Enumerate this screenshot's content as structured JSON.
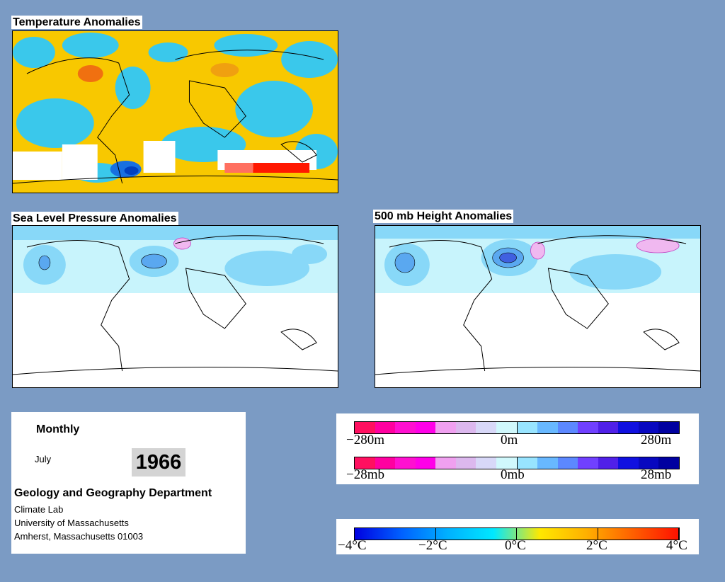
{
  "maps": {
    "temperature": {
      "title": "Temperature Anomalies"
    },
    "slp": {
      "title": "Sea Level Pressure Anomalies"
    },
    "height500": {
      "title": "500 mb Height Anomalies"
    }
  },
  "info": {
    "period": "Monthly",
    "month": "July",
    "year": "1966",
    "department": "Geology and Geography Department",
    "lab": "Climate Lab",
    "university": "University of Massachusetts",
    "address": "Amherst, Massachusetts 01003"
  },
  "legends": {
    "height": {
      "ticks": [
        "−280m",
        "0m",
        "280m"
      ],
      "colors": [
        "#ff1060",
        "#ff00a0",
        "#ff10d0",
        "#ff00e8",
        "#f0a0f0",
        "#dcb8ee",
        "#d8d8f8",
        "#d0f8fc",
        "#98e4ff",
        "#68b8ff",
        "#5c88ff",
        "#7040ff",
        "#5020e8",
        "#1010e0",
        "#0808c0",
        "#0000a0"
      ]
    },
    "pressure": {
      "ticks": [
        "−28mb",
        "0mb",
        "28mb"
      ],
      "colors": [
        "#ff1060",
        "#ff00a0",
        "#ff10d0",
        "#ff00e8",
        "#f0a0f0",
        "#dcb8ee",
        "#d8d8f8",
        "#d0f8fc",
        "#98e4ff",
        "#68b8ff",
        "#5c88ff",
        "#7040ff",
        "#5020e8",
        "#1010e0",
        "#0808c0",
        "#0000a0"
      ]
    },
    "temperature": {
      "ticks": [
        "−4°C",
        "−2°C",
        "0°C",
        "2°C",
        "4°C"
      ],
      "gradient": [
        "#0000e0",
        "#0060ff",
        "#00b0ff",
        "#00e8ff",
        "#ffe800",
        "#ffb000",
        "#ff6000",
        "#ff1000"
      ]
    }
  }
}
